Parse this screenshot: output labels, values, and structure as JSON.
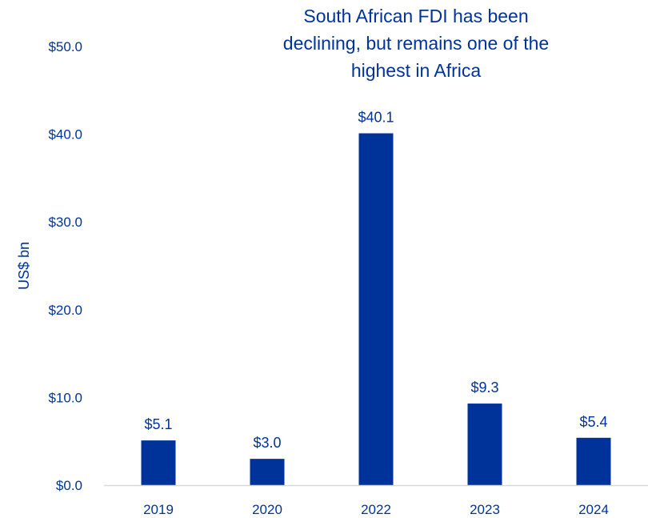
{
  "chart_data": {
    "type": "bar",
    "title_lines": [
      "South African FDI has been",
      "declining, but remains one of the",
      "highest in Africa"
    ],
    "ylabel": "US$ bn",
    "xlabel": "",
    "categories": [
      "2019",
      "2020",
      "2022",
      "2023",
      "2024"
    ],
    "values": [
      5.1,
      3.0,
      40.1,
      9.3,
      5.4
    ],
    "data_labels": [
      "$5.1",
      "$3.0",
      "$40.1",
      "$9.3",
      "$5.4"
    ],
    "yticks": [
      0,
      10,
      20,
      30,
      40,
      50
    ],
    "ytick_labels": [
      "$0.0",
      "$10.0",
      "$20.0",
      "$30.0",
      "$40.0",
      "$50.0"
    ],
    "ylim": [
      0,
      50
    ],
    "grid": false,
    "legend": "none",
    "bar_color": "#003399",
    "text_color": "#003399",
    "axis_color": "#d9d9d9"
  }
}
